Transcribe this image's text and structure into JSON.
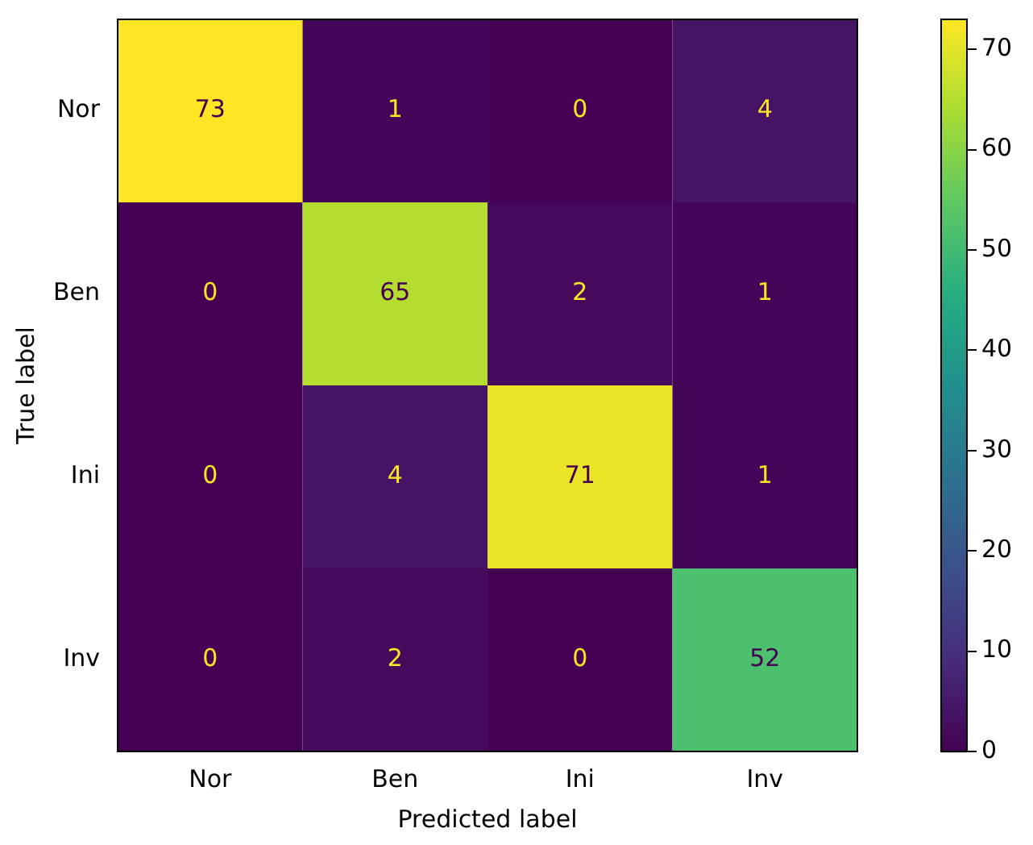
{
  "chart_data": {
    "type": "heatmap",
    "xlabel": "Predicted label",
    "ylabel": "True label",
    "categories": [
      "Nor",
      "Ben",
      "Ini",
      "Inv"
    ],
    "y_categories": [
      "Nor",
      "Ben",
      "Ini",
      "Inv"
    ],
    "cells": [
      [
        73,
        1,
        0,
        4
      ],
      [
        0,
        65,
        2,
        1
      ],
      [
        0,
        4,
        71,
        1
      ],
      [
        0,
        2,
        0,
        52
      ]
    ],
    "clim": [
      0,
      73
    ],
    "cticks": [
      0,
      10,
      20,
      30,
      40,
      50,
      60,
      70
    ],
    "grid": false,
    "data_labels": true
  }
}
